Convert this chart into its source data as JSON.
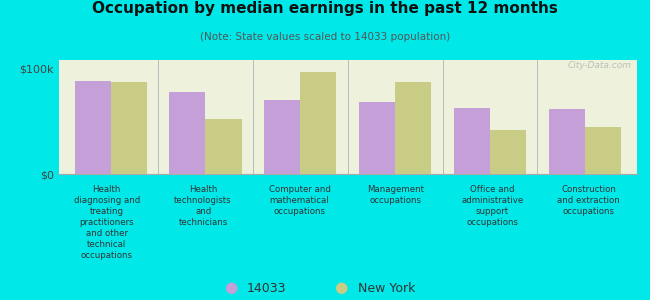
{
  "title": "Occupation by median earnings in the past 12 months",
  "subtitle": "(Note: State values scaled to 14033 population)",
  "categories": [
    "Health\ndiagnosing and\ntreating\npractitioners\nand other\ntechnical\noccupations",
    "Health\ntechnologists\nand\ntechnicians",
    "Computer and\nmathematical\noccupations",
    "Management\noccupations",
    "Office and\nadministrative\nsupport\noccupations",
    "Construction\nand extraction\noccupations"
  ],
  "values_14033": [
    88000,
    78000,
    70000,
    68000,
    63000,
    62000
  ],
  "values_ny": [
    87000,
    52000,
    97000,
    87000,
    42000,
    45000
  ],
  "color_14033": "#c49fd8",
  "color_ny": "#c8cc84",
  "ylim": [
    0,
    108000
  ],
  "ytick_labels": [
    "$0",
    "$100k"
  ],
  "ytick_vals": [
    0,
    100000
  ],
  "background_color": "#00e8e8",
  "plot_bg_color": "#eef2dc",
  "legend_label_14033": "14033",
  "legend_label_ny": "New York",
  "watermark": "City-Data.com"
}
